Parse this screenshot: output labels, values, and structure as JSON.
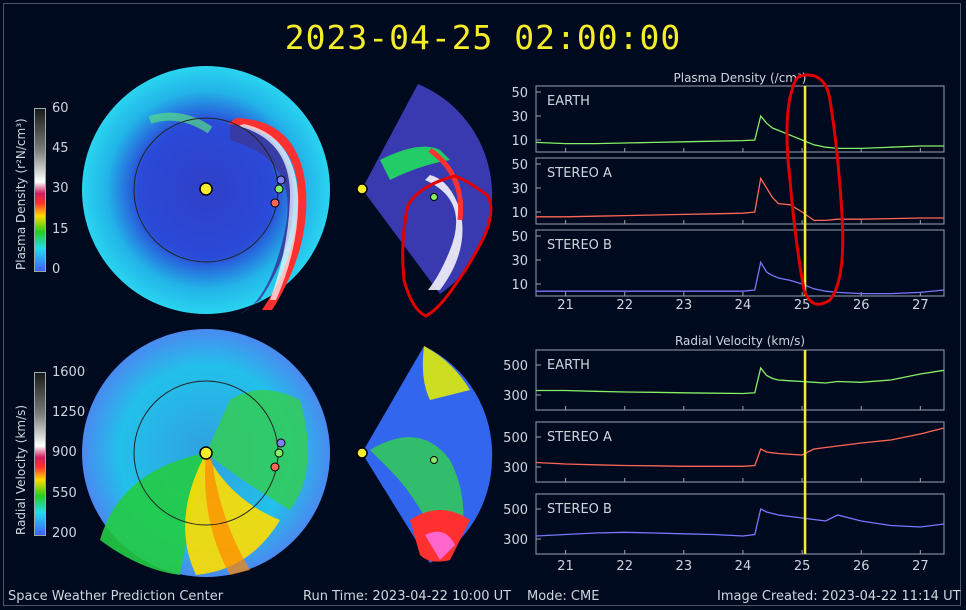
{
  "title": "2023-04-25 02:00:00",
  "colorbars": {
    "density": {
      "title": "Plasma Density (r²N/cm³)",
      "ticks": [
        "60",
        "45",
        "30",
        "15",
        "0"
      ]
    },
    "velocity": {
      "title": "Radial Velocity (km/s)",
      "ticks": [
        "1600",
        "1250",
        "900",
        "550",
        "200"
      ]
    }
  },
  "footer": {
    "org": "Space Weather Prediction Center",
    "run_time": "Run Time: 2023-04-22 10:00 UT",
    "mode": "Mode: CME",
    "image_created": "Image Created: 2023-04-22 11:14 UT"
  },
  "colors": {
    "earth": "#88ee66",
    "stereo_a": "#ff6655",
    "stereo_b": "#7777ff",
    "marker": "#f5ed2a",
    "annotation": "#e00000"
  },
  "chart_data": [
    {
      "type": "line",
      "title": "Plasma Density (/cm³)",
      "x": [
        20.5,
        21,
        21.5,
        22,
        22.5,
        23,
        23.5,
        24,
        24.2,
        24.3,
        24.4,
        24.5,
        24.6,
        24.8,
        25,
        25.2,
        25.4,
        25.6,
        26,
        26.5,
        27,
        27.4
      ],
      "xticks": [
        "21",
        "22",
        "23",
        "24",
        "25",
        "26",
        "27"
      ],
      "xlim": [
        20.5,
        27.4
      ],
      "current_time_x": 25.05,
      "panels": [
        {
          "name": "EARTH",
          "yticks": [
            "50",
            "30",
            "10"
          ],
          "ylim": [
            0,
            55
          ],
          "values": [
            8,
            7,
            7,
            7.5,
            8,
            8.5,
            9,
            9.5,
            10,
            30,
            24,
            20,
            18,
            14,
            10,
            6,
            4,
            3,
            3,
            4,
            5,
            5
          ]
        },
        {
          "name": "STEREO A",
          "yticks": [
            "50",
            "30",
            "10"
          ],
          "ylim": [
            0,
            55
          ],
          "values": [
            6,
            6,
            6.5,
            7,
            7.5,
            8,
            8.5,
            9,
            10,
            38,
            30,
            22,
            17,
            16,
            10,
            3,
            3,
            4,
            4,
            4.5,
            5,
            5
          ]
        },
        {
          "name": "STEREO B",
          "yticks": [
            "50",
            "30",
            "10"
          ],
          "ylim": [
            0,
            55
          ],
          "values": [
            4,
            4,
            4,
            4,
            4,
            4,
            4,
            4,
            5,
            28,
            20,
            17,
            15,
            13,
            10,
            6,
            4,
            3,
            2,
            2,
            3,
            5
          ]
        }
      ]
    },
    {
      "type": "line",
      "title": "Radial Velocity (km/s)",
      "x": [
        20.5,
        21,
        21.5,
        22,
        22.5,
        23,
        23.5,
        24,
        24.2,
        24.3,
        24.4,
        24.5,
        24.6,
        24.8,
        25,
        25.2,
        25.4,
        25.6,
        26,
        26.5,
        27,
        27.4
      ],
      "xticks": [
        "21",
        "22",
        "23",
        "24",
        "25",
        "26",
        "27"
      ],
      "xlim": [
        20.5,
        27.4
      ],
      "current_time_x": 25.05,
      "panels": [
        {
          "name": "EARTH",
          "yticks": [
            "500",
            "300"
          ],
          "ylim": [
            200,
            600
          ],
          "values": [
            330,
            330,
            325,
            320,
            318,
            315,
            312,
            310,
            315,
            480,
            430,
            410,
            400,
            395,
            390,
            385,
            380,
            390,
            385,
            400,
            440,
            465
          ]
        },
        {
          "name": "STEREO A",
          "yticks": [
            "500",
            "300"
          ],
          "ylim": [
            200,
            600
          ],
          "values": [
            330,
            320,
            315,
            310,
            308,
            305,
            305,
            305,
            310,
            420,
            400,
            395,
            390,
            385,
            380,
            420,
            430,
            440,
            460,
            480,
            520,
            560
          ]
        },
        {
          "name": "STEREO B",
          "yticks": [
            "500",
            "300"
          ],
          "ylim": [
            200,
            600
          ],
          "values": [
            320,
            330,
            340,
            345,
            340,
            335,
            330,
            320,
            330,
            500,
            480,
            470,
            460,
            450,
            440,
            430,
            420,
            460,
            420,
            390,
            380,
            400
          ]
        }
      ]
    }
  ]
}
